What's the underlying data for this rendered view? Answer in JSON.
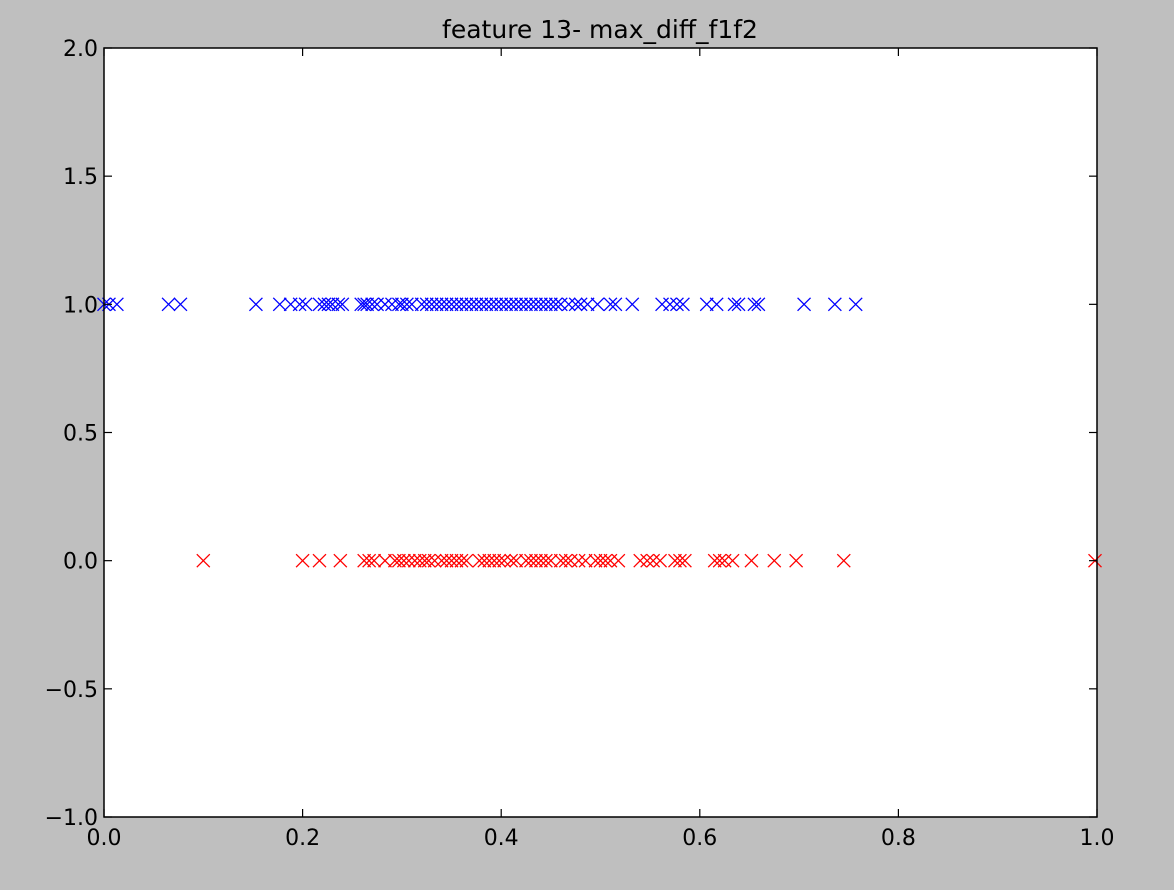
{
  "chart_data": {
    "type": "scatter",
    "title": "feature 13- max_diff_f1f2",
    "xlabel": "",
    "ylabel": "",
    "xlim": [
      0.0,
      1.0
    ],
    "ylim": [
      -1.0,
      2.0
    ],
    "xticks": [
      0.0,
      0.2,
      0.4,
      0.6,
      0.8,
      1.0
    ],
    "xtick_labels": [
      "0.0",
      "0.2",
      "0.4",
      "0.6",
      "0.8",
      "1.0"
    ],
    "yticks": [
      -1.0,
      -0.5,
      0.0,
      0.5,
      1.0,
      1.5,
      2.0
    ],
    "ytick_labels": [
      "−1.0",
      "−0.5",
      "0.0",
      "0.5",
      "1.0",
      "1.5",
      "2.0"
    ],
    "grid": false,
    "marker": "x",
    "series": [
      {
        "color": "#0000ff",
        "y": 1.0,
        "x": [
          0.0,
          0.005,
          0.013,
          0.065,
          0.077,
          0.153,
          0.177,
          0.188,
          0.197,
          0.203,
          0.217,
          0.222,
          0.226,
          0.23,
          0.236,
          0.24,
          0.259,
          0.262,
          0.265,
          0.27,
          0.275,
          0.283,
          0.29,
          0.297,
          0.3,
          0.305,
          0.31,
          0.32,
          0.325,
          0.33,
          0.335,
          0.34,
          0.345,
          0.35,
          0.355,
          0.36,
          0.365,
          0.37,
          0.375,
          0.38,
          0.385,
          0.39,
          0.395,
          0.4,
          0.405,
          0.41,
          0.415,
          0.42,
          0.425,
          0.43,
          0.435,
          0.44,
          0.445,
          0.45,
          0.455,
          0.46,
          0.468,
          0.475,
          0.48,
          0.487,
          0.497,
          0.51,
          0.515,
          0.532,
          0.562,
          0.57,
          0.577,
          0.583,
          0.607,
          0.617,
          0.635,
          0.639,
          0.655,
          0.659,
          0.705,
          0.736,
          0.757
        ]
      },
      {
        "color": "#ff0000",
        "y": 0.0,
        "x": [
          0.1,
          0.2,
          0.217,
          0.238,
          0.262,
          0.267,
          0.272,
          0.283,
          0.293,
          0.297,
          0.302,
          0.307,
          0.313,
          0.318,
          0.323,
          0.327,
          0.333,
          0.34,
          0.345,
          0.35,
          0.355,
          0.36,
          0.365,
          0.378,
          0.383,
          0.388,
          0.393,
          0.398,
          0.403,
          0.41,
          0.415,
          0.425,
          0.43,
          0.435,
          0.44,
          0.445,
          0.45,
          0.46,
          0.465,
          0.47,
          0.478,
          0.485,
          0.495,
          0.5,
          0.505,
          0.51,
          0.518,
          0.54,
          0.547,
          0.553,
          0.56,
          0.575,
          0.58,
          0.585,
          0.615,
          0.62,
          0.625,
          0.633,
          0.652,
          0.675,
          0.697,
          0.745,
          0.998
        ]
      }
    ]
  }
}
